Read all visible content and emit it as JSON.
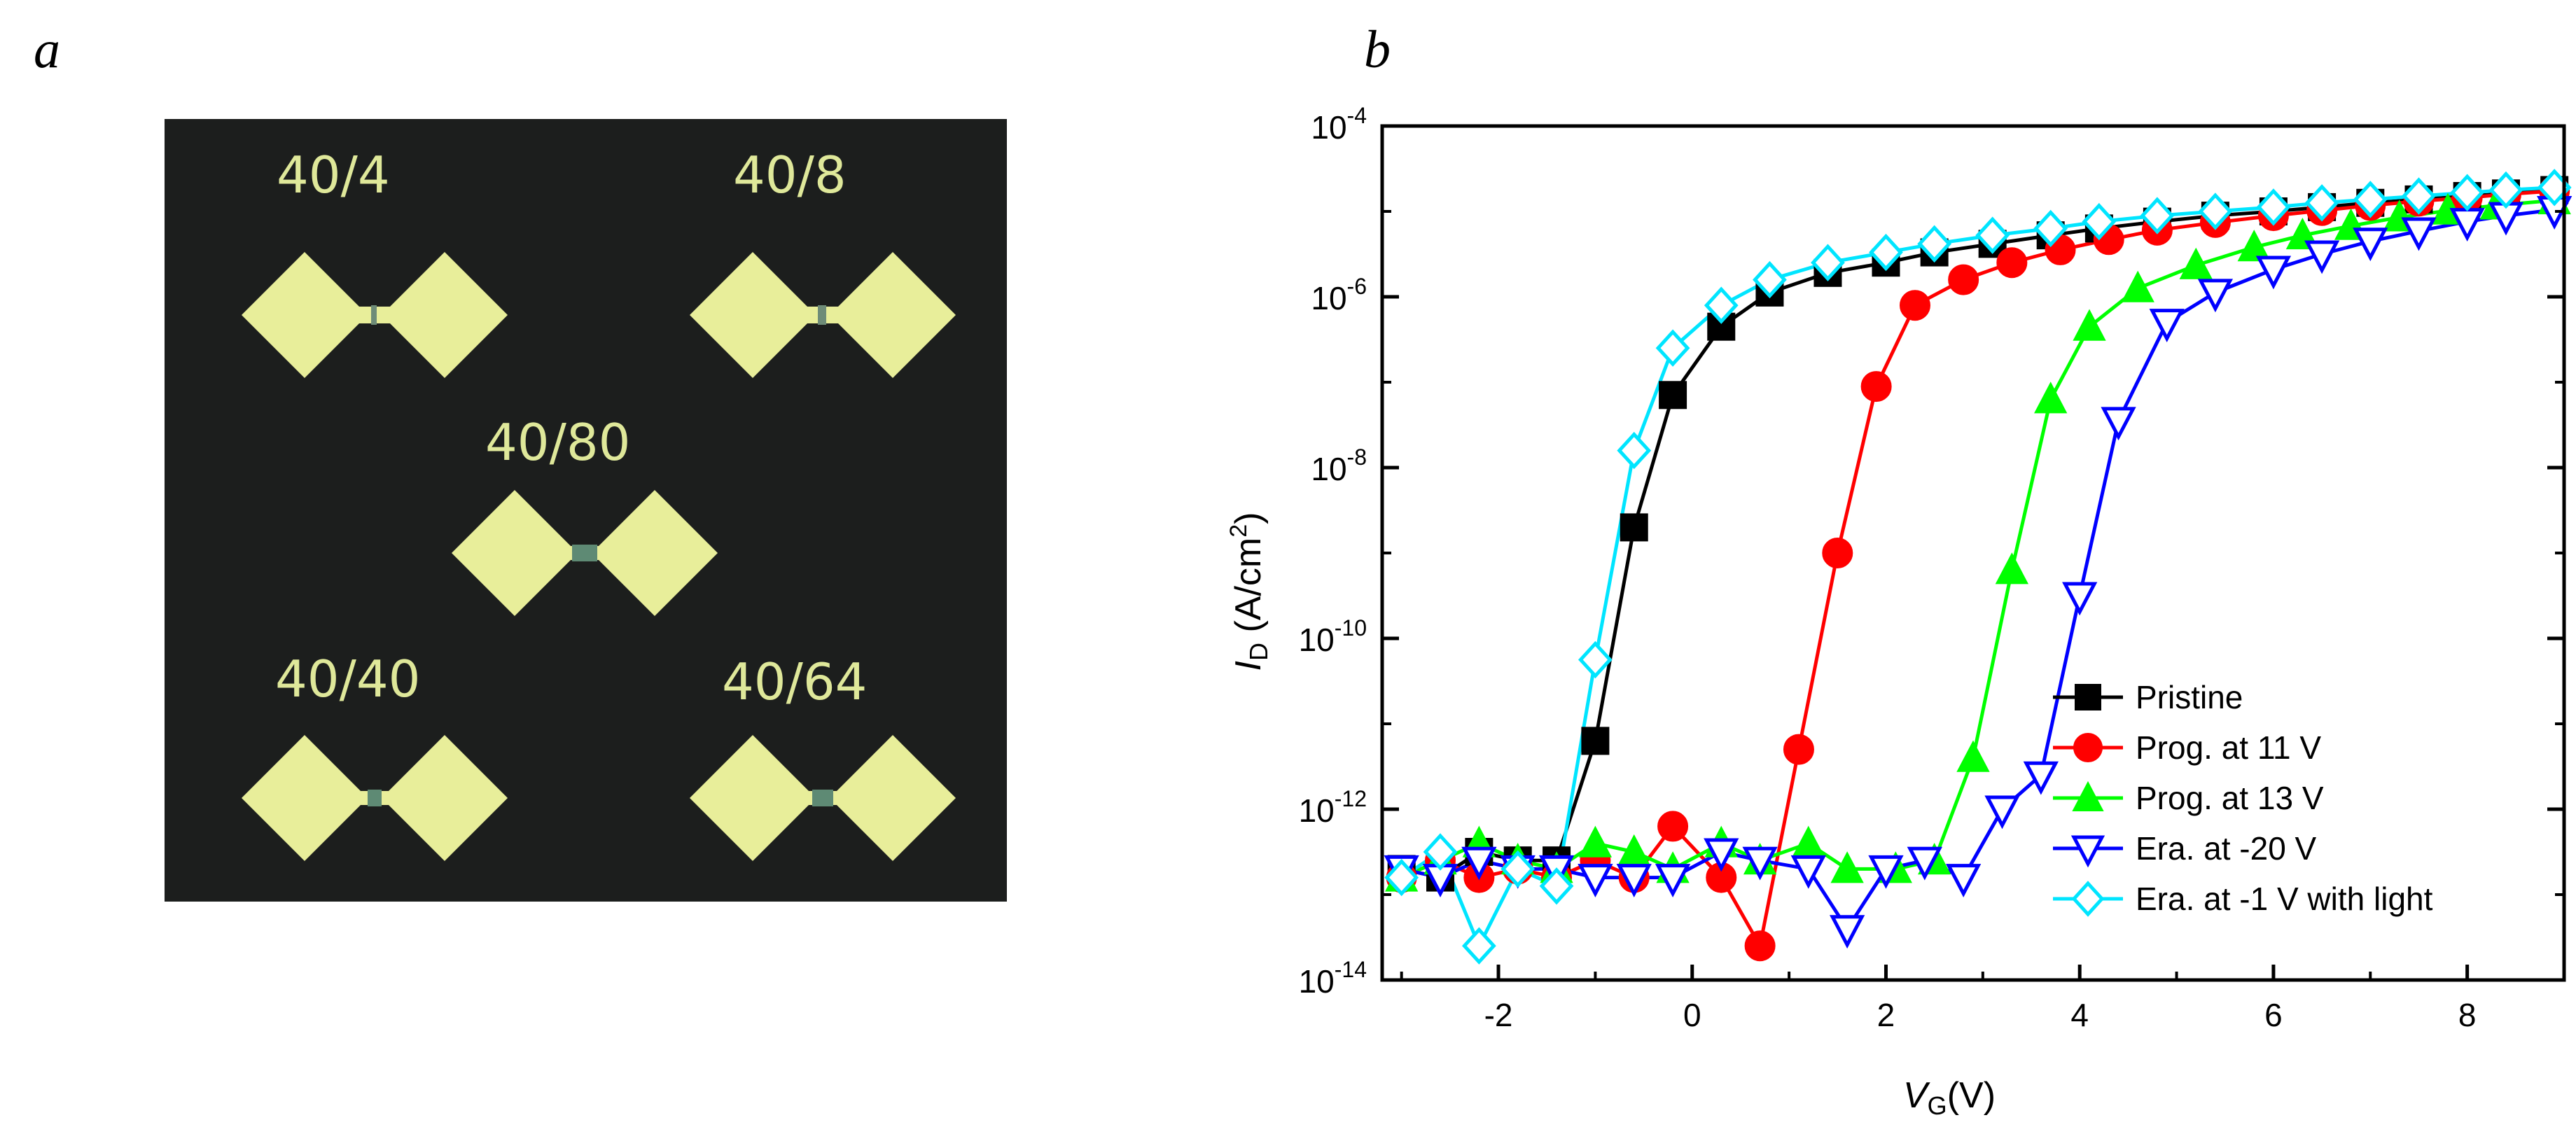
{
  "panel_a": {
    "label": "a",
    "devices": [
      {
        "name": "40/4"
      },
      {
        "name": "40/8"
      },
      {
        "name": "40/80"
      },
      {
        "name": "40/40"
      },
      {
        "name": "40/64"
      }
    ]
  },
  "panel_b": {
    "label": "b"
  },
  "chart_data": {
    "type": "line",
    "title": "",
    "xlabel": "V_G(V)",
    "ylabel": "I_D (A/cm^2)",
    "xlim": [
      -3.2,
      9.0
    ],
    "ylim_log10": [
      -14,
      -4
    ],
    "x_ticks": [
      -2,
      0,
      2,
      4,
      6,
      8
    ],
    "y_ticks_exponents": [
      -14,
      -12,
      -10,
      -8,
      -6,
      -4
    ],
    "yscale": "log",
    "legend_position": "bottom-right",
    "series": [
      {
        "name": "Pristine",
        "color": "#000000",
        "marker": "square",
        "x": [
          -3.0,
          -2.6,
          -2.2,
          -1.8,
          -1.4,
          -1.0,
          -0.6,
          -0.2,
          0.3,
          0.8,
          1.4,
          2.0,
          2.5,
          3.1,
          3.7,
          4.2,
          4.8,
          5.4,
          6.0,
          6.5,
          7.0,
          7.5,
          8.0,
          8.4,
          8.9
        ],
        "log_y": [
          -12.7,
          -12.8,
          -12.5,
          -12.6,
          -12.6,
          -11.2,
          -8.7,
          -7.15,
          -6.35,
          -5.95,
          -5.72,
          -5.6,
          -5.48,
          -5.38,
          -5.28,
          -5.2,
          -5.12,
          -5.05,
          -5.0,
          -4.95,
          -4.9,
          -4.86,
          -4.82,
          -4.79,
          -4.75
        ]
      },
      {
        "name": "Prog. at 11 V",
        "color": "#ff0000",
        "marker": "circle",
        "x": [
          -3.0,
          -2.6,
          -2.2,
          -1.8,
          -1.4,
          -1.0,
          -0.6,
          -0.2,
          0.3,
          0.7,
          1.1,
          1.5,
          1.9,
          2.3,
          2.8,
          3.3,
          3.8,
          4.3,
          4.8,
          5.4,
          6.0,
          6.5,
          7.0,
          7.5,
          8.0,
          8.4,
          8.9
        ],
        "log_y": [
          -12.8,
          -12.6,
          -12.8,
          -12.7,
          -12.8,
          -12.6,
          -12.8,
          -12.2,
          -12.8,
          -13.6,
          -11.3,
          -9.0,
          -7.05,
          -6.1,
          -5.8,
          -5.6,
          -5.45,
          -5.33,
          -5.22,
          -5.13,
          -5.05,
          -4.99,
          -4.93,
          -4.88,
          -4.84,
          -4.8,
          -4.76
        ]
      },
      {
        "name": "Prog. at 13 V",
        "color": "#00ff00",
        "marker": "triangle-up",
        "x": [
          -3.0,
          -2.6,
          -2.2,
          -1.8,
          -1.4,
          -1.0,
          -0.6,
          -0.2,
          0.3,
          0.7,
          1.2,
          1.6,
          2.1,
          2.5,
          2.9,
          3.3,
          3.7,
          4.1,
          4.6,
          5.2,
          5.8,
          6.3,
          6.8,
          7.3,
          7.8,
          8.3,
          8.9
        ],
        "log_y": [
          -12.8,
          -12.6,
          -12.4,
          -12.6,
          -12.7,
          -12.4,
          -12.5,
          -12.7,
          -12.4,
          -12.6,
          -12.4,
          -12.7,
          -12.7,
          -12.6,
          -11.4,
          -9.2,
          -7.2,
          -6.35,
          -5.9,
          -5.63,
          -5.42,
          -5.28,
          -5.17,
          -5.07,
          -4.99,
          -4.93,
          -4.87
        ]
      },
      {
        "name": "Era. at -20 V",
        "color": "#0000ff",
        "marker": "triangle-down",
        "x": [
          -3.0,
          -2.6,
          -2.2,
          -1.8,
          -1.4,
          -1.0,
          -0.6,
          -0.2,
          0.3,
          0.7,
          1.2,
          1.6,
          2.0,
          2.4,
          2.8,
          3.2,
          3.6,
          4.0,
          4.4,
          4.9,
          5.4,
          6.0,
          6.5,
          7.0,
          7.5,
          8.0,
          8.4,
          8.9
        ],
        "log_y": [
          -12.7,
          -12.8,
          -12.6,
          -12.7,
          -12.7,
          -12.8,
          -12.8,
          -12.8,
          -12.5,
          -12.6,
          -12.7,
          -13.4,
          -12.7,
          -12.6,
          -12.8,
          -12.0,
          -11.6,
          -9.5,
          -7.45,
          -6.3,
          -5.95,
          -5.68,
          -5.5,
          -5.35,
          -5.23,
          -5.12,
          -5.05,
          -4.98
        ]
      },
      {
        "name": "Era. at -1 V with light",
        "color": "#00e5ff",
        "marker": "diamond",
        "x": [
          -3.0,
          -2.6,
          -2.2,
          -1.8,
          -1.4,
          -1.0,
          -0.6,
          -0.2,
          0.3,
          0.8,
          1.4,
          2.0,
          2.5,
          3.1,
          3.7,
          4.2,
          4.8,
          5.4,
          6.0,
          6.5,
          7.0,
          7.5,
          8.0,
          8.4,
          8.9
        ],
        "log_y": [
          -12.8,
          -12.5,
          -13.6,
          -12.7,
          -12.9,
          -10.25,
          -7.8,
          -6.6,
          -6.1,
          -5.8,
          -5.6,
          -5.48,
          -5.38,
          -5.28,
          -5.2,
          -5.12,
          -5.05,
          -5.0,
          -4.95,
          -4.9,
          -4.86,
          -4.82,
          -4.78,
          -4.75,
          -4.72
        ]
      }
    ]
  }
}
